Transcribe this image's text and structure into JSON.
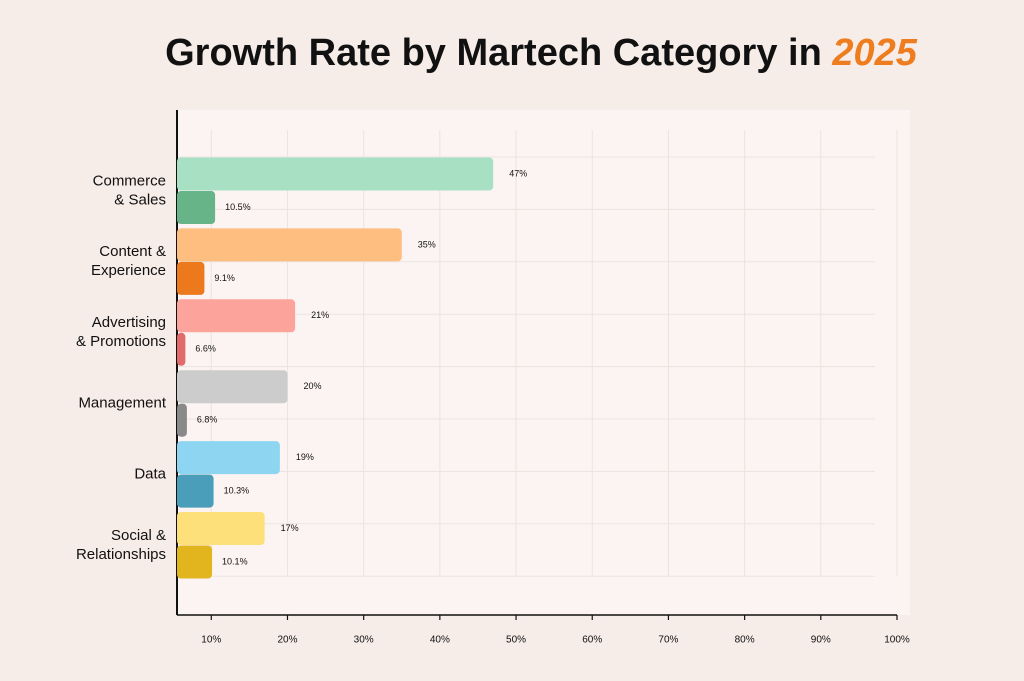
{
  "chart_data": {
    "type": "bar",
    "orientation": "horizontal",
    "title": "Growth Rate by Martech Category in ",
    "title_highlight": "2025",
    "title_highlight_color": "#ee7d1f",
    "categories": [
      [
        "Commerce",
        "& Sales"
      ],
      [
        "Content &",
        "Experience"
      ],
      [
        "Advertising",
        "& Promotions"
      ],
      [
        "Management"
      ],
      [
        "Data"
      ],
      [
        "Social &",
        "Relationships"
      ]
    ],
    "series": [
      {
        "colors": [
          "#a8e0c4",
          "#fdbe7f",
          "#fca39b",
          "#cccccc",
          "#8dd5f0",
          "#fde07a"
        ],
        "values": [
          47,
          35,
          21,
          20,
          19,
          17
        ],
        "value_labels": [
          "47%",
          "35%",
          "21%",
          "20%",
          "19%",
          "17%"
        ]
      },
      {
        "colors": [
          "#66b487",
          "#ec7a1c",
          "#e06b6b",
          "#8a8a8a",
          "#4a9eba",
          "#e2b51e"
        ],
        "values": [
          10.5,
          9.1,
          6.6,
          6.8,
          10.3,
          10.1
        ],
        "value_labels": [
          "10.5%",
          "9.1%",
          "6.6%",
          "6.8%",
          "10.3%",
          "10.1%"
        ]
      }
    ],
    "xlim": [
      5.5,
      100
    ],
    "xticks": [
      {
        "value": 10,
        "label": "10%"
      },
      {
        "value": 20,
        "label": "20%"
      },
      {
        "value": 30,
        "label": "30%"
      },
      {
        "value": 40,
        "label": "40%"
      },
      {
        "value": 50,
        "label": "50%"
      },
      {
        "value": 60,
        "label": "60%"
      },
      {
        "value": 70,
        "label": "70%"
      },
      {
        "value": 80,
        "label": "80%"
      },
      {
        "value": 90,
        "label": "90%"
      },
      {
        "value": 100,
        "label": "100%"
      }
    ],
    "grid": true
  }
}
